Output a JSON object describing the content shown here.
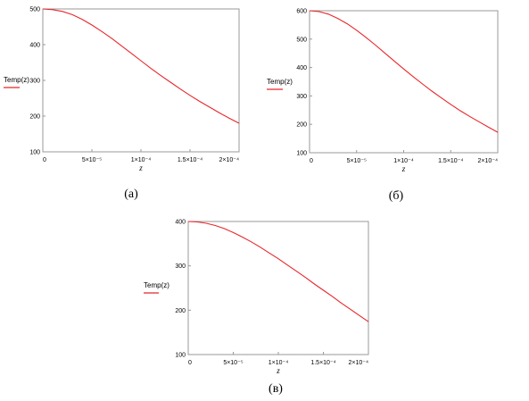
{
  "chart_data": [
    {
      "type": "line",
      "caption": "(а)",
      "ylabel": "Temp(z)",
      "xlabel": "z",
      "xlim": [
        0,
        0.0002
      ],
      "ylim": [
        100,
        500
      ],
      "yticks": [
        "100",
        "200",
        "300",
        "400",
        "500"
      ],
      "xticks": [
        "0",
        "5×10⁻⁵",
        "1×10⁻⁴",
        "1.5×10⁻⁴",
        "2×10⁻⁴"
      ],
      "series": [
        {
          "color": "#e8262b",
          "x": [
            0,
            1e-05,
            2e-05,
            3e-05,
            4e-05,
            5e-05,
            6e-05,
            7e-05,
            8e-05,
            9e-05,
            0.0001,
            0.00011,
            0.00012,
            0.00013,
            0.00014,
            0.00015,
            0.00016,
            0.00017,
            0.00018,
            0.00019,
            0.0002
          ],
          "y": [
            500,
            498,
            493,
            484,
            471,
            455,
            437,
            418,
            397,
            376,
            355,
            334,
            314,
            295,
            276,
            258,
            241,
            225,
            209,
            194,
            180
          ]
        }
      ]
    },
    {
      "type": "line",
      "caption": "(б)",
      "ylabel": "Temp(z)",
      "xlabel": "z",
      "xlim": [
        0,
        0.0002
      ],
      "ylim": [
        100,
        600
      ],
      "yticks": [
        "100",
        "200",
        "300",
        "400",
        "500",
        "600"
      ],
      "xticks": [
        "0",
        "5×10⁻⁵",
        "1×10⁻⁴",
        "1.5×10⁻⁴",
        "2×10⁻⁴"
      ],
      "series": [
        {
          "color": "#e8262b",
          "x": [
            0,
            1e-05,
            2e-05,
            3e-05,
            4e-05,
            5e-05,
            6e-05,
            7e-05,
            8e-05,
            9e-05,
            0.0001,
            0.00011,
            0.00012,
            0.00013,
            0.00014,
            0.00015,
            0.00016,
            0.00017,
            0.00018,
            0.00019,
            0.0002
          ],
          "y": [
            600,
            597,
            588,
            573,
            554,
            531,
            506,
            479,
            451,
            423,
            395,
            368,
            342,
            317,
            293,
            270,
            248,
            228,
            209,
            190,
            172
          ]
        }
      ]
    },
    {
      "type": "line",
      "caption": "(в)",
      "ylabel": "Temp(z)",
      "xlabel": "z",
      "xlim": [
        0,
        0.0002
      ],
      "ylim": [
        100,
        400
      ],
      "yticks": [
        "100",
        "200",
        "300",
        "400"
      ],
      "xticks": [
        "0",
        "5×10⁻⁵",
        "1×10⁻⁴",
        "1.5×10⁻⁴",
        "2×10⁻⁴"
      ],
      "series": [
        {
          "color": "#e8262b",
          "x": [
            0,
            1e-05,
            2e-05,
            3e-05,
            4e-05,
            5e-05,
            6e-05,
            7e-05,
            8e-05,
            9e-05,
            0.0001,
            0.00011,
            0.00012,
            0.00013,
            0.00014,
            0.00015,
            0.00016,
            0.00017,
            0.00018,
            0.00019,
            0.0002
          ],
          "y": [
            400,
            399,
            396,
            391,
            384,
            375,
            365,
            354,
            342,
            329,
            316,
            302,
            288,
            274,
            259,
            245,
            231,
            216,
            202,
            188,
            174
          ]
        }
      ]
    }
  ]
}
